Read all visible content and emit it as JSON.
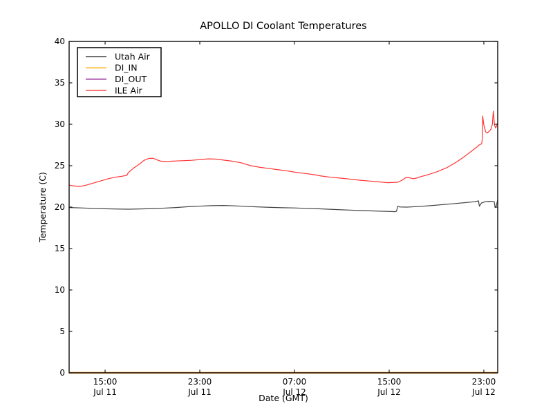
{
  "title": "APOLLO DI Coolant Temperatures",
  "axes": {
    "xlabel": "Date (GMT)",
    "ylabel": "Temperature (C)",
    "ylim": [
      0,
      40
    ],
    "y_ticks": [
      0,
      5,
      10,
      15,
      20,
      25,
      30,
      35,
      40
    ],
    "x_domain_hours": [
      11.96,
      48.17
    ],
    "x_ticks": [
      {
        "hour": 15,
        "time": "15:00",
        "date": "Jul 11"
      },
      {
        "hour": 23,
        "time": "23:00",
        "date": "Jul 11"
      },
      {
        "hour": 31,
        "time": "07:00",
        "date": "Jul 12"
      },
      {
        "hour": 39,
        "time": "15:00",
        "date": "Jul 12"
      },
      {
        "hour": 47,
        "time": "23:00",
        "date": "Jul 12"
      }
    ],
    "grid": false
  },
  "legend": {
    "position": "upper-left",
    "entries": [
      {
        "label": "Utah Air",
        "color": "#444444"
      },
      {
        "label": "DI_IN",
        "color": "#ffa500"
      },
      {
        "label": "DI_OUT",
        "color": "#800080"
      },
      {
        "label": "ILE Air",
        "color": "#ff3333"
      }
    ]
  },
  "chart_data": {
    "type": "line",
    "x_units": "hours since Jul 11 00:00 GMT",
    "title": "APOLLO DI Coolant Temperatures",
    "xlabel": "Date (GMT)",
    "ylabel": "Temperature (C)",
    "ylim": [
      0,
      40
    ],
    "legend_position": "upper left",
    "series": [
      {
        "name": "Utah Air",
        "color": "#444444",
        "width": 1.2,
        "points": [
          [
            11.96,
            19.95
          ],
          [
            13,
            19.9
          ],
          [
            14,
            19.85
          ],
          [
            15,
            19.8
          ],
          [
            16,
            19.77
          ],
          [
            17,
            19.75
          ],
          [
            18,
            19.78
          ],
          [
            19,
            19.82
          ],
          [
            20,
            19.88
          ],
          [
            21,
            19.95
          ],
          [
            22,
            20.05
          ],
          [
            23,
            20.12
          ],
          [
            24,
            20.18
          ],
          [
            25,
            20.2
          ],
          [
            26,
            20.15
          ],
          [
            27,
            20.08
          ],
          [
            28,
            20.02
          ],
          [
            29,
            19.97
          ],
          [
            30,
            19.93
          ],
          [
            31,
            19.9
          ],
          [
            32,
            19.85
          ],
          [
            33,
            19.8
          ],
          [
            34,
            19.74
          ],
          [
            35,
            19.68
          ],
          [
            36,
            19.62
          ],
          [
            37,
            19.57
          ],
          [
            38,
            19.52
          ],
          [
            39,
            19.48
          ],
          [
            39.5,
            19.45
          ],
          [
            39.62,
            19.5
          ],
          [
            39.72,
            20.1
          ],
          [
            39.9,
            20.02
          ],
          [
            40.5,
            20.0
          ],
          [
            41.5,
            20.08
          ],
          [
            42.5,
            20.18
          ],
          [
            43.5,
            20.3
          ],
          [
            44.5,
            20.42
          ],
          [
            45.5,
            20.55
          ],
          [
            46.2,
            20.65
          ],
          [
            46.45,
            20.72
          ],
          [
            46.55,
            20.75
          ],
          [
            46.62,
            20.1
          ],
          [
            46.8,
            20.5
          ],
          [
            47.1,
            20.65
          ],
          [
            47.4,
            20.7
          ],
          [
            47.7,
            20.68
          ],
          [
            47.88,
            20.65
          ],
          [
            47.95,
            19.95
          ],
          [
            48.05,
            20.15
          ],
          [
            48.17,
            20.9
          ]
        ]
      },
      {
        "name": "DI_IN",
        "color": "#ffa500",
        "width": 2.4,
        "points": [
          [
            11.96,
            0
          ],
          [
            48.17,
            0
          ]
        ]
      },
      {
        "name": "DI_OUT",
        "color": "#800080",
        "width": 1.3,
        "points": [
          [
            11.96,
            0
          ],
          [
            48.17,
            0
          ]
        ]
      },
      {
        "name": "ILE Air",
        "color": "#ff3333",
        "width": 1.2,
        "points": [
          [
            11.96,
            22.65
          ],
          [
            12.4,
            22.55
          ],
          [
            12.9,
            22.5
          ],
          [
            13.4,
            22.65
          ],
          [
            14.0,
            22.9
          ],
          [
            14.6,
            23.15
          ],
          [
            15.2,
            23.4
          ],
          [
            15.8,
            23.6
          ],
          [
            16.4,
            23.72
          ],
          [
            16.85,
            23.85
          ],
          [
            16.95,
            24.15
          ],
          [
            17.4,
            24.7
          ],
          [
            17.9,
            25.2
          ],
          [
            18.3,
            25.65
          ],
          [
            18.7,
            25.88
          ],
          [
            19.05,
            25.9
          ],
          [
            19.35,
            25.72
          ],
          [
            19.7,
            25.55
          ],
          [
            20.1,
            25.5
          ],
          [
            20.7,
            25.55
          ],
          [
            21.5,
            25.6
          ],
          [
            22.3,
            25.65
          ],
          [
            23.1,
            25.75
          ],
          [
            23.7,
            25.82
          ],
          [
            24.3,
            25.8
          ],
          [
            24.9,
            25.7
          ],
          [
            25.7,
            25.55
          ],
          [
            26.5,
            25.35
          ],
          [
            27.3,
            25.0
          ],
          [
            28.1,
            24.8
          ],
          [
            28.9,
            24.65
          ],
          [
            29.7,
            24.5
          ],
          [
            30.5,
            24.35
          ],
          [
            31.1,
            24.2
          ],
          [
            31.7,
            24.1
          ],
          [
            32.5,
            23.95
          ],
          [
            33.3,
            23.75
          ],
          [
            34.1,
            23.6
          ],
          [
            34.9,
            23.5
          ],
          [
            35.7,
            23.38
          ],
          [
            36.5,
            23.25
          ],
          [
            37.3,
            23.15
          ],
          [
            38.1,
            23.05
          ],
          [
            38.9,
            22.95
          ],
          [
            39.7,
            23.0
          ],
          [
            40.1,
            23.25
          ],
          [
            40.4,
            23.55
          ],
          [
            40.7,
            23.55
          ],
          [
            41.05,
            23.42
          ],
          [
            41.3,
            23.5
          ],
          [
            41.6,
            23.65
          ],
          [
            42.3,
            23.92
          ],
          [
            43.1,
            24.3
          ],
          [
            43.9,
            24.78
          ],
          [
            44.7,
            25.45
          ],
          [
            45.4,
            26.15
          ],
          [
            46.0,
            26.8
          ],
          [
            46.45,
            27.3
          ],
          [
            46.6,
            27.5
          ],
          [
            46.75,
            27.6
          ],
          [
            46.82,
            27.65
          ],
          [
            46.87,
            28.3
          ],
          [
            46.9,
            31.0
          ],
          [
            47.0,
            29.9
          ],
          [
            47.15,
            29.1
          ],
          [
            47.28,
            28.95
          ],
          [
            47.45,
            29.15
          ],
          [
            47.6,
            29.4
          ],
          [
            47.72,
            30.0
          ],
          [
            47.8,
            31.6
          ],
          [
            47.9,
            29.9
          ],
          [
            48.0,
            29.55
          ],
          [
            48.08,
            29.8
          ],
          [
            48.17,
            30.2
          ]
        ]
      }
    ]
  }
}
